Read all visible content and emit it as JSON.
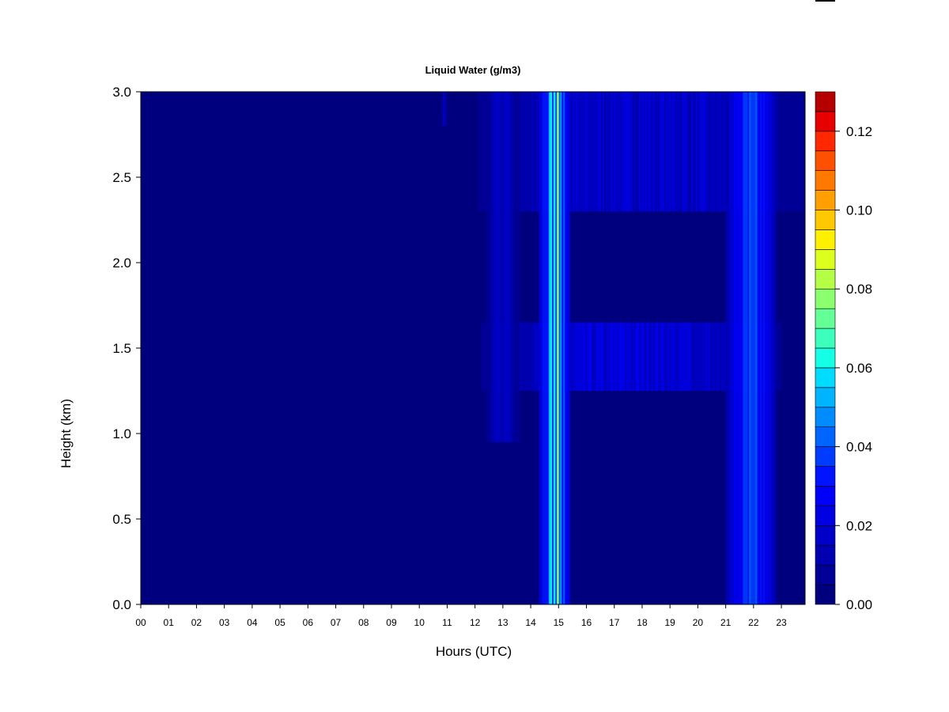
{
  "chart_data": {
    "type": "heatmap",
    "title": "Liquid Water (g/m3)",
    "xlabel": "Hours (UTC)",
    "ylabel": "Height (km)",
    "xlim": [
      0,
      23.85
    ],
    "ylim": [
      0.0,
      3.0
    ],
    "x_ticks": [
      "00",
      "01",
      "02",
      "03",
      "04",
      "05",
      "06",
      "07",
      "08",
      "09",
      "10",
      "11",
      "12",
      "13",
      "14",
      "15",
      "16",
      "17",
      "18",
      "19",
      "20",
      "21",
      "22",
      "23"
    ],
    "y_ticks": [
      "0.0",
      "0.5",
      "1.0",
      "1.5",
      "2.0",
      "2.5",
      "3.0"
    ],
    "colorbar": {
      "range": [
        0.0,
        0.13
      ],
      "step": 0.005,
      "tick_labels": [
        "0.00",
        "0.02",
        "0.04",
        "0.06",
        "0.08",
        "0.10",
        "0.12"
      ],
      "colors": [
        "#00007f",
        "#000097",
        "#0000b0",
        "#0000c8",
        "#0000e1",
        "#0000fa",
        "#0014ff",
        "#003cff",
        "#0064ff",
        "#008cff",
        "#00b4ff",
        "#00dcff",
        "#14ffe6",
        "#3cffbe",
        "#64ff96",
        "#8cff6e",
        "#b4ff46",
        "#dcff1e",
        "#fff000",
        "#ffc800",
        "#ffa000",
        "#ff7800",
        "#ff5000",
        "#ff2800",
        "#e60000",
        "#b40000",
        "#7f0000"
      ]
    },
    "background_value": 0.0,
    "features": [
      {
        "name": "sparse cloud",
        "hour_range": [
          10.8,
          11.0
        ],
        "height_range": [
          2.8,
          3.0
        ],
        "value": 0.012
      },
      {
        "name": "upper cloud layer",
        "hour_range": [
          12.1,
          23.8
        ],
        "height_range": [
          2.3,
          3.0
        ],
        "value": 0.016
      },
      {
        "name": "mid cloud layer",
        "hour_range": [
          12.2,
          23.0
        ],
        "height_range": [
          1.25,
          1.65
        ],
        "value": 0.018
      },
      {
        "name": "cloud column 13h",
        "hour_range": [
          12.4,
          13.6
        ],
        "height_range": [
          0.95,
          3.0
        ],
        "value": 0.014
      },
      {
        "name": "rain column 14-15h",
        "hour_range": [
          14.3,
          15.4
        ],
        "height_range": [
          0.0,
          3.0
        ],
        "value": 0.045
      },
      {
        "name": "rain column 21-22h",
        "hour_range": [
          21.0,
          22.8
        ],
        "height_range": [
          0.0,
          3.0
        ],
        "value": 0.028
      },
      {
        "name": "peak streak 15h",
        "hour_range": [
          14.9,
          15.05
        ],
        "height_range": [
          0.0,
          3.0
        ],
        "value": 0.085
      }
    ]
  }
}
